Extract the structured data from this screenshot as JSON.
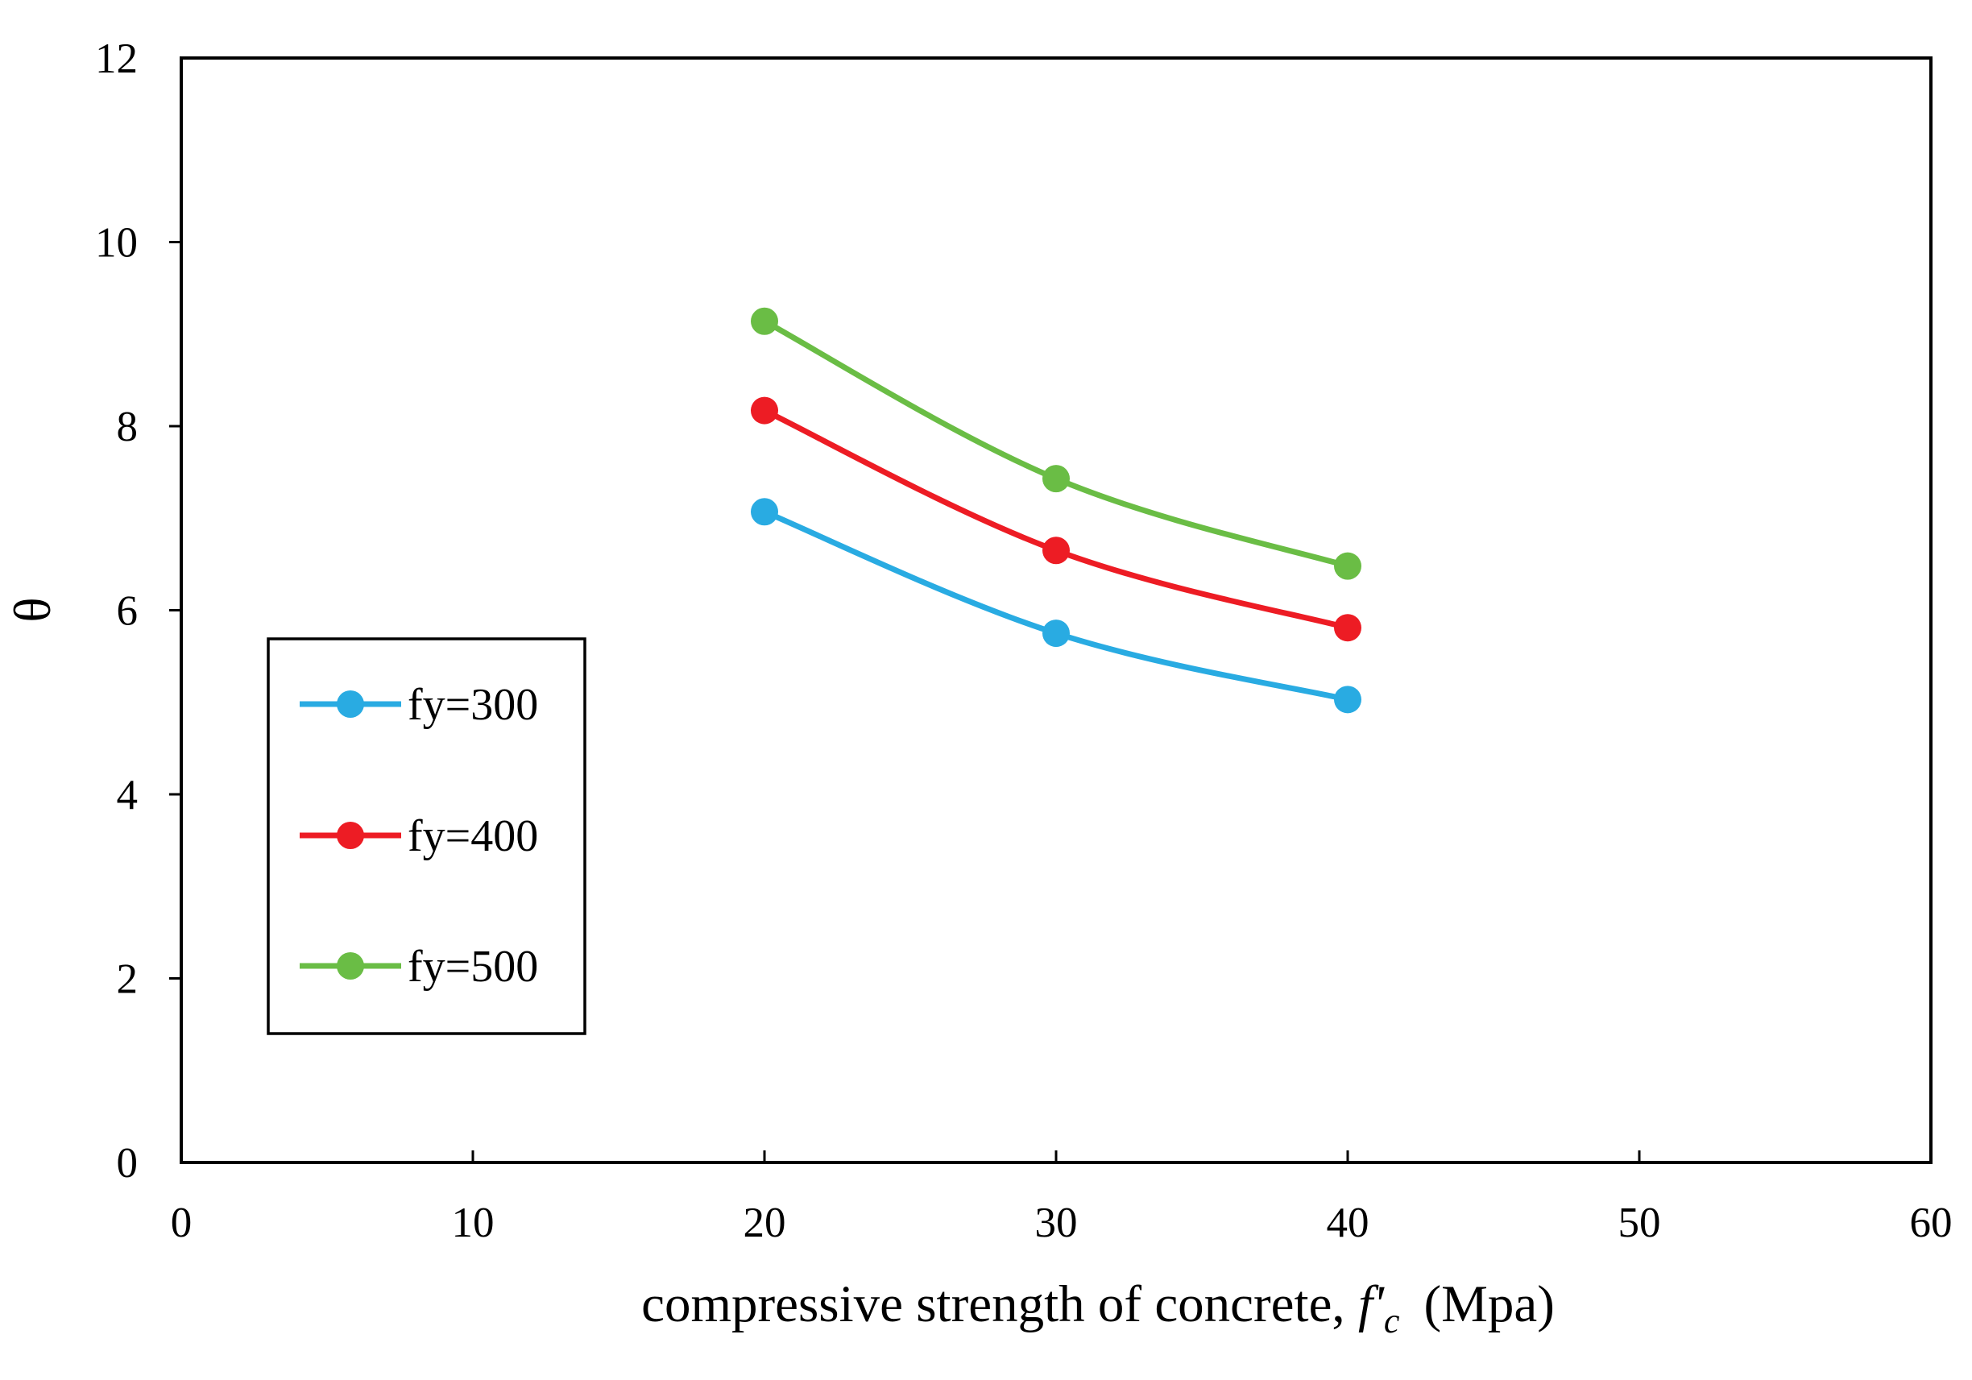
{
  "chart_data": {
    "type": "line",
    "title": "",
    "xlabel": {
      "prefix": "compressive strength of concrete, ",
      "symbol": "f'",
      "subscript": "c",
      "units": "(Mpa)"
    },
    "ylabel": "θ",
    "xlim": [
      0,
      60
    ],
    "ylim": [
      0,
      12
    ],
    "xticks": [
      "0",
      "10",
      "20",
      "30",
      "40",
      "50",
      "60"
    ],
    "yticks": [
      "0",
      "2",
      "4",
      "6",
      "8",
      "10",
      "12"
    ],
    "grid": false,
    "legend_position": "left-center",
    "x": [
      20,
      30,
      40
    ],
    "series": [
      {
        "name": "fy=300",
        "color": "#29abe2",
        "values": [
          7.07,
          5.75,
          5.03
        ]
      },
      {
        "name": "fy=400",
        "color": "#ed1c24",
        "values": [
          8.17,
          6.65,
          5.81
        ]
      },
      {
        "name": "fy=500",
        "color": "#6abd45",
        "values": [
          9.14,
          7.43,
          6.48
        ]
      }
    ]
  }
}
